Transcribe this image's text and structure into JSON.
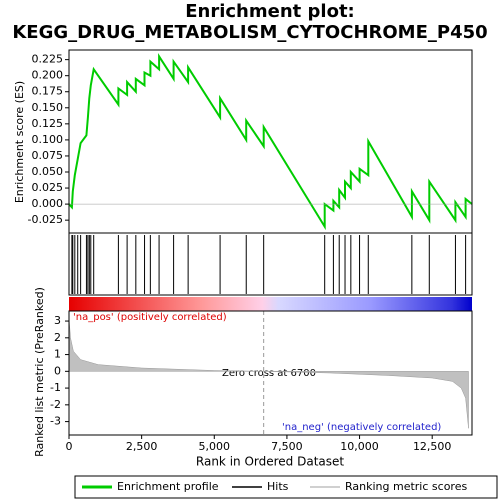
{
  "chart_data": [
    {
      "type": "line",
      "title": "Enrichment plot:",
      "subtitle": "KEGG_DRUG_METABOLISM_CYTOCHROME_P450",
      "y_label": "Enrichment score (ES)",
      "xlim": [
        0,
        13870
      ],
      "ylim": [
        -0.045,
        0.24
      ],
      "yticks": [
        -0.025,
        {
          "value": 0,
          "label": "0.000"
        },
        0.025,
        {
          "value": 0.05,
          "label": "0.050"
        },
        0.075,
        {
          "value": 0.1,
          "label": "0.100"
        },
        0.125,
        {
          "value": 0.15,
          "label": "0.150"
        },
        0.175,
        {
          "value": 0.2,
          "label": "0.200"
        },
        0.225
      ],
      "series": [
        {
          "name": "Enrichment profile",
          "color": "#00cc00",
          "x": [
            0,
            100,
            130,
            200,
            300,
            400,
            600,
            650,
            700,
            750,
            850,
            1700,
            1700,
            2000,
            2000,
            2300,
            2300,
            2600,
            2600,
            2800,
            2800,
            3100,
            3100,
            3600,
            3600,
            4100,
            4100,
            5200,
            5200,
            6100,
            6100,
            6700,
            6700,
            8800,
            8800,
            9100,
            9100,
            9300,
            9300,
            9500,
            9500,
            9700,
            9700,
            10000,
            10000,
            10300,
            10300,
            11800,
            11800,
            12400,
            12400,
            13300,
            13300,
            13650,
            13650,
            13870
          ],
          "values": [
            0,
            -0.005,
            0.02,
            0.045,
            0.07,
            0.095,
            0.107,
            0.135,
            0.165,
            0.185,
            0.21,
            0.155,
            0.18,
            0.17,
            0.19,
            0.175,
            0.195,
            0.185,
            0.205,
            0.2,
            0.222,
            0.21,
            0.23,
            0.195,
            0.222,
            0.19,
            0.213,
            0.135,
            0.165,
            0.1,
            0.13,
            0.09,
            0.12,
            -0.035,
            0.0,
            -0.01,
            0.005,
            -0.005,
            0.022,
            0.01,
            0.035,
            0.025,
            0.05,
            0.035,
            0.055,
            0.045,
            0.098,
            -0.02,
            0.02,
            -0.025,
            0.035,
            -0.025,
            0.003,
            -0.02,
            0.008,
            0
          ]
        }
      ],
      "hits_name": "Hits",
      "hits": [
        100,
        130,
        200,
        300,
        400,
        600,
        650,
        700,
        750,
        850,
        1700,
        2000,
        2300,
        2600,
        2800,
        3100,
        3600,
        4100,
        5200,
        6100,
        6700,
        8800,
        9100,
        9300,
        9500,
        9700,
        10000,
        10300,
        11800,
        12400,
        13300,
        13650
      ]
    },
    {
      "type": "area",
      "x_label": "Rank in Ordered Dataset",
      "y_label": "Ranked list metric (PreRanked)",
      "xlim": [
        0,
        13870
      ],
      "ylim": [
        -3.8,
        3.6
      ],
      "xticks": [
        0,
        {
          "value": 2500,
          "label": "2,500"
        },
        {
          "value": 5000,
          "label": "5,000"
        },
        {
          "value": 7500,
          "label": "7,500"
        },
        {
          "value": 10000,
          "label": "10,000"
        },
        {
          "value": 12500,
          "label": "12,500"
        }
      ],
      "yticks": [
        3,
        2,
        1,
        0,
        -1,
        -2,
        -3
      ],
      "series": [
        {
          "name": "Ranking metric scores",
          "color": "#c0c0c0",
          "x": [
            0,
            50,
            150,
            400,
            1000,
            2500,
            5000,
            6700,
            9000,
            11000,
            12500,
            13200,
            13500,
            13650,
            13750
          ],
          "values": [
            3.2,
            2,
            1.2,
            0.7,
            0.4,
            0.2,
            0.05,
            0,
            -0.1,
            -0.25,
            -0.4,
            -0.6,
            -1,
            -1.6,
            -3.4
          ]
        }
      ],
      "zero_cross": 6700,
      "zero_cross_label": "Zero cross at 6700",
      "pos_label": "'na_pos' (positively correlated)",
      "neg_label": "'na_neg' (negatively correlated)"
    }
  ]
}
